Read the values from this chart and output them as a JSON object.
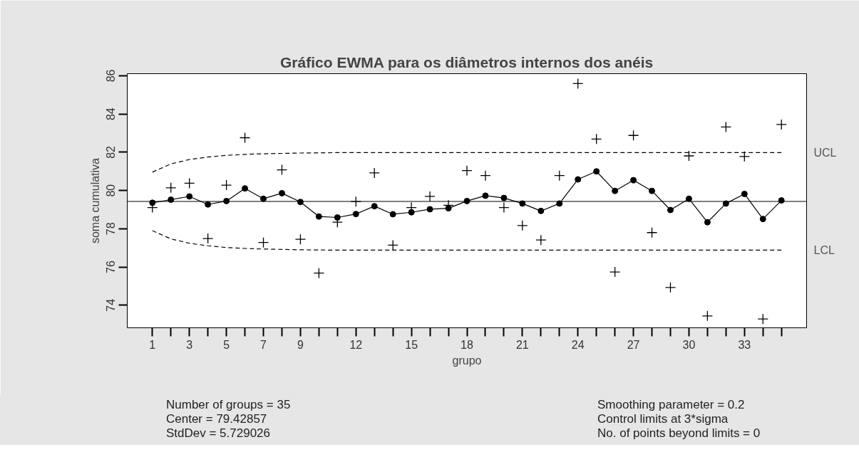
{
  "chart_data": {
    "type": "line",
    "title": "Gráfico EWMA para os diâmetros internos dos anéis",
    "xlabel": "grupo",
    "ylabel": "soma cumulativa",
    "x": [
      1,
      2,
      3,
      4,
      5,
      6,
      7,
      8,
      9,
      10,
      11,
      12,
      13,
      14,
      15,
      16,
      17,
      18,
      19,
      20,
      21,
      22,
      23,
      24,
      25,
      26,
      27,
      28,
      29,
      30,
      31,
      32,
      33,
      34,
      35
    ],
    "xlim": [
      -0.36,
      36.36
    ],
    "ylim": [
      72.82,
      86.11
    ],
    "xticks": [
      1,
      {
        "value": 2,
        "label": null
      },
      3,
      {
        "value": 4,
        "label": null
      },
      5,
      {
        "value": 6,
        "label": null
      },
      7,
      {
        "value": 8,
        "label": null
      },
      9,
      {
        "value": 10,
        "label": null
      },
      {
        "value": 11,
        "label": null
      },
      12,
      {
        "value": 13,
        "label": null
      },
      {
        "value": 14,
        "label": null
      },
      15,
      {
        "value": 16,
        "label": null
      },
      {
        "value": 17,
        "label": null
      },
      18,
      {
        "value": 19,
        "label": null
      },
      {
        "value": 20,
        "label": null
      },
      21,
      {
        "value": 22,
        "label": null
      },
      {
        "value": 23,
        "label": null
      },
      24,
      {
        "value": 25,
        "label": null
      },
      {
        "value": 26,
        "label": null
      },
      27,
      {
        "value": 28,
        "label": null
      },
      {
        "value": 29,
        "label": null
      },
      30,
      {
        "value": 31,
        "label": null
      },
      {
        "value": 32,
        "label": null
      },
      33,
      {
        "value": 34,
        "label": null
      },
      {
        "value": 35,
        "label": null
      }
    ],
    "yticks": [
      74,
      76,
      78,
      80,
      82,
      84,
      86
    ],
    "grid": false,
    "series": [
      {
        "type": "scatter",
        "marker": "cross",
        "color": "#000000",
        "values": [
          79.11,
          80.14,
          80.38,
          77.49,
          80.28,
          82.76,
          77.28,
          81.08,
          77.45,
          75.68,
          78.34,
          79.42,
          80.92,
          77.14,
          79.11,
          79.69,
          79.23,
          81.04,
          80.78,
          79.11,
          78.17,
          77.41,
          80.78,
          85.59,
          82.69,
          75.74,
          82.88,
          77.8,
          74.93,
          81.81,
          73.44,
          83.32,
          81.78,
          73.28,
          83.45
        ]
      },
      {
        "type": "line",
        "marker": "circle",
        "color": "#000000",
        "values": [
          79.36,
          79.52,
          79.69,
          79.27,
          79.45,
          80.11,
          79.57,
          79.86,
          79.4,
          78.64,
          78.59,
          78.77,
          79.18,
          78.76,
          78.86,
          79.02,
          79.07,
          79.45,
          79.73,
          79.61,
          79.32,
          78.93,
          79.32,
          80.58,
          81.0,
          79.98,
          80.54,
          79.98,
          78.98,
          79.57,
          78.34,
          79.32,
          79.82,
          78.51,
          79.48
        ]
      },
      {
        "name": "UCL",
        "type": "line",
        "marker": "none",
        "line_style": "dashed",
        "color": "#000000",
        "values": [
          80.96,
          81.39,
          81.62,
          81.75,
          81.84,
          81.89,
          81.92,
          81.94,
          81.96,
          81.97,
          81.98,
          81.98,
          81.98,
          81.98,
          81.98,
          81.98,
          81.98,
          81.98,
          81.98,
          81.98,
          81.98,
          81.98,
          81.98,
          81.98,
          81.98,
          81.98,
          81.98,
          81.98,
          81.98,
          81.98,
          81.98,
          81.98,
          81.98,
          81.98,
          81.98
        ]
      },
      {
        "name": "LCL",
        "type": "line",
        "marker": "none",
        "line_style": "dashed",
        "color": "#000000",
        "values": [
          77.9,
          77.47,
          77.24,
          77.11,
          77.02,
          76.97,
          76.94,
          76.92,
          76.9,
          76.89,
          76.88,
          76.88,
          76.88,
          76.88,
          76.88,
          76.88,
          76.88,
          76.88,
          76.88,
          76.88,
          76.88,
          76.88,
          76.88,
          76.88,
          76.88,
          76.88,
          76.88,
          76.88,
          76.88,
          76.88,
          76.88,
          76.88,
          76.88,
          76.88,
          76.88
        ]
      }
    ],
    "ref_lines": [
      {
        "axis": "y",
        "value": 79.42857,
        "color": "#000000",
        "line_style": "solid"
      }
    ],
    "annotations": [
      "Number of groups = 35",
      "Center = 79.42857",
      "StdDev = 5.729026",
      "Smoothing parameter =  0.2",
      "Control limits at 3*sigma",
      "No. of points beyond limits = 0"
    ]
  }
}
